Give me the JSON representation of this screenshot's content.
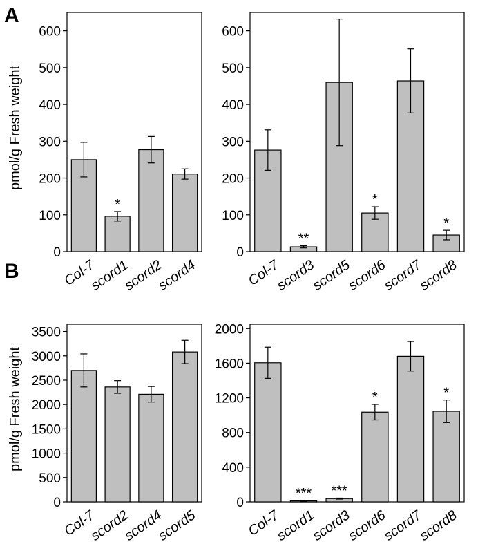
{
  "panels": [
    {
      "letter": "A",
      "ylabel": "pmol/g Fresh weight"
    },
    {
      "letter": "B",
      "ylabel": "pmol/g Fresh weight"
    }
  ],
  "colors": {
    "bar": "#bfbfbf",
    "stroke": "#000000"
  },
  "chart_data": [
    {
      "type": "bar",
      "panel": "A",
      "categories": [
        "Col-7",
        "scord1",
        "scord2",
        "scord4"
      ],
      "values": [
        250,
        96,
        277,
        211
      ],
      "errors": [
        47,
        13,
        36,
        14
      ],
      "significance": [
        "",
        "*",
        "",
        ""
      ],
      "ylim": [
        0,
        650
      ],
      "yticks": [
        0,
        100,
        200,
        300,
        400,
        500,
        600
      ],
      "ytick_labels": [
        "0",
        "100",
        "200",
        "300",
        "400",
        "500",
        "600"
      ],
      "ylabel": "pmol/g Fresh weight"
    },
    {
      "type": "bar",
      "panel": "A",
      "categories": [
        "Col-7",
        "scord3",
        "scord5",
        "scord6",
        "scord7",
        "scord8"
      ],
      "values": [
        276,
        13,
        460,
        105,
        464,
        45
      ],
      "errors": [
        55,
        3,
        172,
        17,
        87,
        13
      ],
      "significance": [
        "",
        "**",
        "",
        "*",
        "",
        "*"
      ],
      "ylim": [
        0,
        650
      ],
      "yticks": [
        0,
        100,
        200,
        300,
        400,
        500,
        600
      ],
      "ytick_labels": [
        "0",
        "100",
        "200",
        "300",
        "400",
        "500",
        "600"
      ],
      "ylabel": ""
    },
    {
      "type": "bar",
      "panel": "B",
      "categories": [
        "Col-7",
        "scord2",
        "scord4",
        "scord5"
      ],
      "values": [
        2700,
        2360,
        2210,
        3080
      ],
      "errors": [
        340,
        130,
        160,
        240
      ],
      "significance": [
        "",
        "",
        "",
        ""
      ],
      "ylim": [
        0,
        3650
      ],
      "yticks": [
        0,
        500,
        1000,
        1500,
        2000,
        2500,
        3000,
        3500
      ],
      "ytick_labels": [
        "0",
        "500",
        "1000",
        "1500",
        "2000",
        "2500",
        "3000",
        "3500"
      ],
      "ylabel": "pmol/g Fresh weight"
    },
    {
      "type": "bar",
      "panel": "B",
      "categories": [
        "Col-7",
        "scord1",
        "scord3",
        "scord6",
        "scord7",
        "scord8"
      ],
      "values": [
        1605,
        12,
        38,
        1035,
        1680,
        1045
      ],
      "errors": [
        180,
        4,
        6,
        90,
        170,
        130
      ],
      "significance": [
        "",
        "***",
        "***",
        "*",
        "",
        "*"
      ],
      "ylim": [
        0,
        2050
      ],
      "yticks": [
        0,
        400,
        800,
        1200,
        1600,
        2000
      ],
      "ytick_labels": [
        "0",
        "400",
        "800",
        "1200",
        "1600",
        "2000"
      ],
      "ylabel": ""
    }
  ]
}
